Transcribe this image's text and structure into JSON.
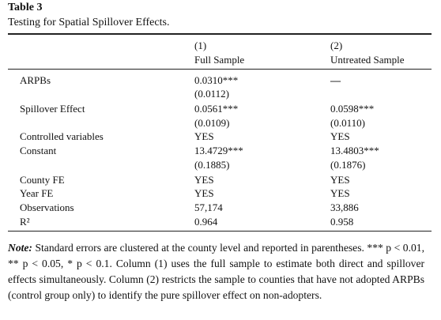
{
  "table": {
    "label": "Table 3",
    "caption": "Testing for Spatial Spillover Effects.",
    "columns": [
      [
        "(1)",
        "Full Sample"
      ],
      [
        "(2)",
        "Untreated Sample"
      ]
    ],
    "rows": [
      [
        "ARPBs",
        "0.0310***",
        "—"
      ],
      [
        null,
        "(0.0112)",
        null
      ],
      [
        "Spillover Effect",
        "0.0561***",
        "0.0598***"
      ],
      [
        null,
        "(0.0109)",
        "(0.0110)"
      ],
      [
        "Controlled variables",
        "YES",
        "YES"
      ],
      [
        "Constant",
        "13.4729***",
        "13.4803***"
      ],
      [
        null,
        "(0.1885)",
        "(0.1876)"
      ],
      [
        "County FE",
        "YES",
        "YES"
      ],
      [
        "Year FE",
        "YES",
        "YES"
      ],
      [
        "Observations",
        "57,174",
        "33,886"
      ],
      [
        "R²",
        "0.964",
        "0.958"
      ]
    ]
  },
  "note": {
    "label": "Note:",
    "text": "Standard errors are clustered at the county level and reported in parentheses. *** p < 0.01, ** p < 0.05, * p < 0.1. Column (1) uses the full sample to estimate both direct and spillover effects simultaneously. Column (2) restricts the sample to counties that have not adopted ARPBs (control group only) to identify the pure spillover effect on non-adopters."
  }
}
